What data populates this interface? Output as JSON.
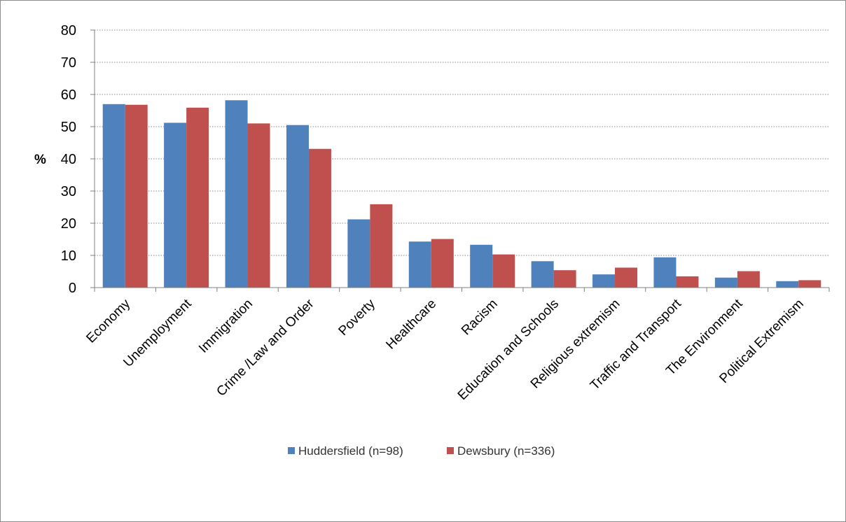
{
  "chart_data": {
    "type": "bar",
    "ylabel": "%",
    "ylim": [
      0,
      80
    ],
    "yticks": [
      0,
      10,
      20,
      30,
      40,
      50,
      60,
      70,
      80
    ],
    "grid": "horizontal dotted",
    "legend_position": "bottom",
    "categories": [
      "Economy",
      "Unemployment",
      "Immigration",
      "Crime /Law and Order",
      "Poverty",
      "Healthcare",
      "Racism",
      "Education and Schools",
      "Religious extremism",
      "Traffic and Transport",
      "The Environment",
      "Political Extremism"
    ],
    "series": [
      {
        "name": "Huddersfield (n=98)",
        "color": "#4f81bd",
        "values": [
          57,
          51.2,
          58.2,
          50.5,
          21.2,
          14.3,
          13.3,
          8.2,
          4.1,
          9.4,
          3.1,
          2
        ]
      },
      {
        "name": "Dewsbury (n=336)",
        "color": "#c0504d",
        "values": [
          56.8,
          55.9,
          51,
          43.1,
          25.9,
          15.1,
          10.3,
          5.4,
          6.2,
          3.5,
          5.1,
          2.3
        ]
      }
    ]
  }
}
